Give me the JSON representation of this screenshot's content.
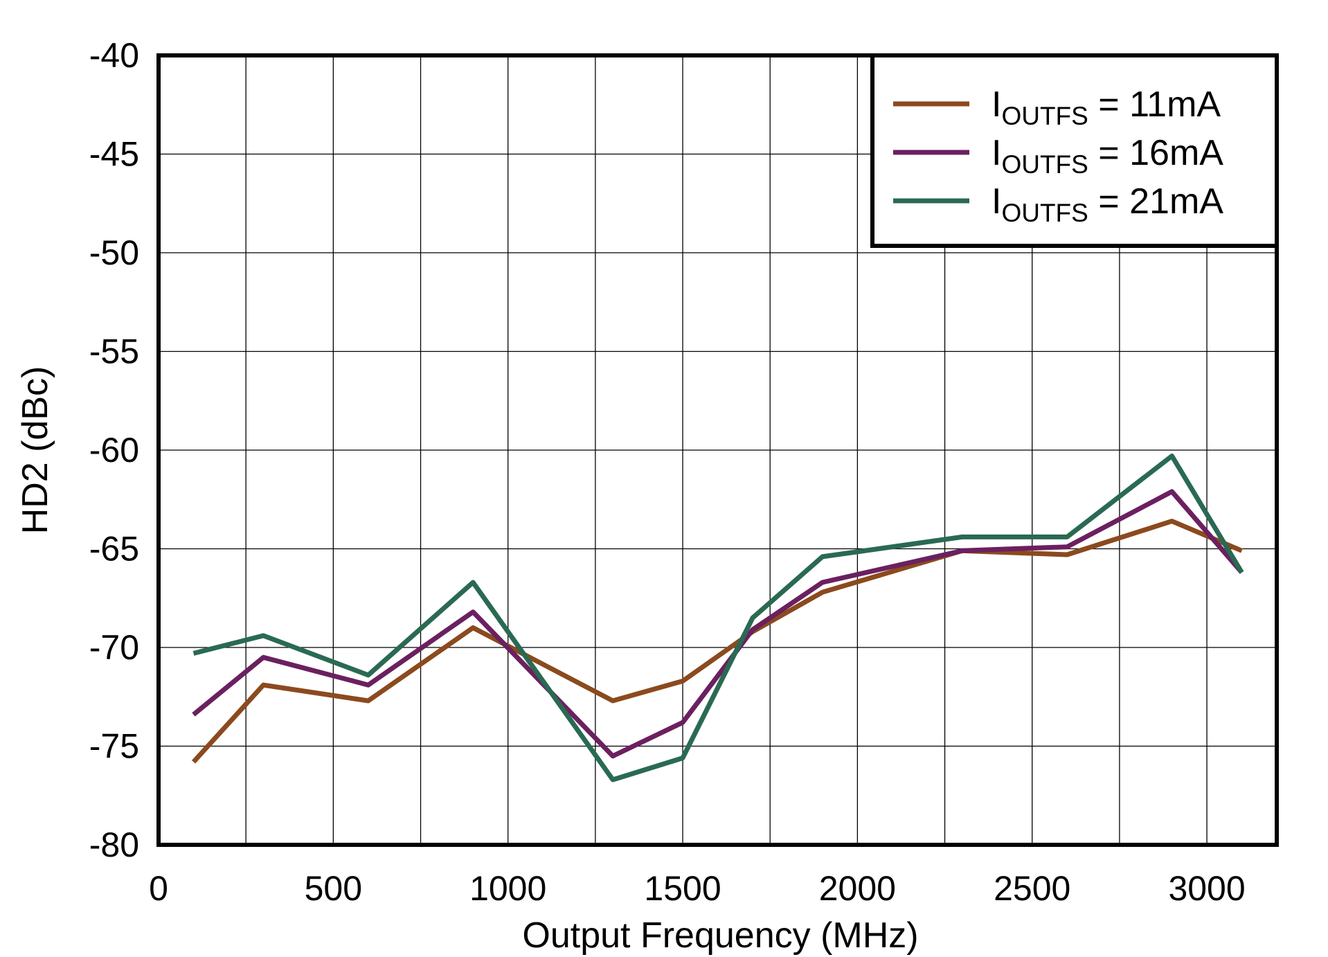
{
  "chart_data": {
    "type": "line",
    "xlabel": "Output Frequency (MHz)",
    "ylabel": "HD2 (dBc)",
    "xlim": [
      0,
      3200
    ],
    "ylim": [
      -80,
      -40
    ],
    "xticks": [
      0,
      500,
      1000,
      1500,
      2000,
      2500,
      3000
    ],
    "yticks": [
      -40,
      -45,
      -50,
      -55,
      -60,
      -65,
      -70,
      -75,
      -80
    ],
    "grid": true,
    "legend_position": "top-right",
    "x": [
      100,
      300,
      600,
      900,
      1300,
      1500,
      1700,
      1900,
      2300,
      2600,
      2900,
      3100
    ],
    "series": [
      {
        "name_main": "I",
        "name_sub": "OUTFS",
        "name_rest": " = 11mA",
        "color": "#8B4A1E",
        "values": [
          -75.8,
          -71.9,
          -72.7,
          -69.0,
          -72.7,
          -71.7,
          -69.2,
          -67.2,
          -65.1,
          -65.3,
          -63.6,
          -65.1
        ]
      },
      {
        "name_main": "I",
        "name_sub": "OUTFS",
        "name_rest": " = 16mA",
        "color": "#6B2060",
        "values": [
          -73.4,
          -70.5,
          -71.9,
          -68.2,
          -75.5,
          -73.8,
          -69.1,
          -66.7,
          -65.1,
          -64.9,
          -62.1,
          -66.2
        ]
      },
      {
        "name_main": "I",
        "name_sub": "OUTFS",
        "name_rest": " = 21mA",
        "color": "#2A6A52",
        "values": [
          -70.3,
          -69.4,
          -71.4,
          -66.7,
          -76.7,
          -75.6,
          -68.5,
          -65.4,
          -64.4,
          -64.4,
          -60.3,
          -66.2
        ]
      }
    ]
  }
}
